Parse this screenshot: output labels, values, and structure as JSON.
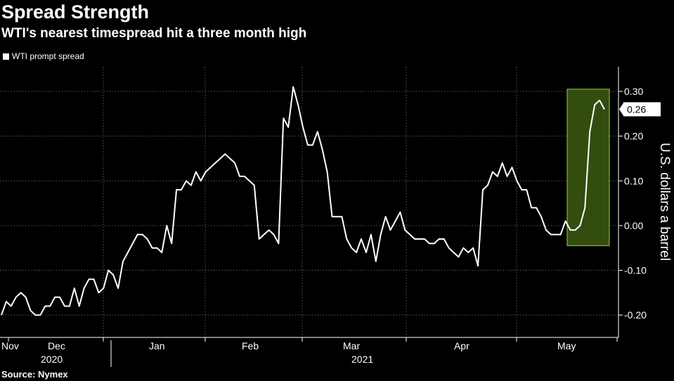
{
  "title": "Spread Strength",
  "subtitle": "WTI's nearest timespread hit a three month high",
  "source": "Source: Nymex",
  "colors": {
    "background": "#000000",
    "line": "#ffffff",
    "highlight_fill": "#3b5a10",
    "highlight_stroke": "#9ccc3c"
  },
  "chart_data": {
    "type": "line",
    "title": "Spread Strength",
    "subtitle": "WTI's nearest timespread hit a three month high",
    "ylabel": "U.S. dollars a barrel",
    "ylim": [
      -0.25,
      0.355
    ],
    "y_ticks": [
      0.3,
      0.2,
      0.1,
      0.0,
      -0.1,
      -0.2
    ],
    "y_tick_labels": [
      "0.30",
      "0.20",
      "0.10",
      "0.00",
      "-0.10",
      "-0.20"
    ],
    "x_month_labels": [
      "Nov",
      "Dec",
      "Jan",
      "Feb",
      "Mar",
      "Apr",
      "May"
    ],
    "x_year_labels": [
      "2020",
      "2021"
    ],
    "grid": true,
    "legend": "top-left",
    "last_value_label": "0.26",
    "highlight": {
      "y_range": [
        -0.045,
        0.305
      ],
      "description": "green highlighted box around recent rise"
    },
    "series": [
      {
        "name": "WTI prompt spread",
        "values": [
          -0.2,
          -0.17,
          -0.18,
          -0.16,
          -0.15,
          -0.16,
          -0.19,
          -0.2,
          -0.2,
          -0.18,
          -0.18,
          -0.16,
          -0.16,
          -0.18,
          -0.18,
          -0.14,
          -0.18,
          -0.14,
          -0.12,
          -0.12,
          -0.15,
          -0.14,
          -0.1,
          -0.11,
          -0.14,
          -0.08,
          -0.06,
          -0.04,
          -0.02,
          -0.02,
          -0.03,
          -0.05,
          -0.05,
          -0.06,
          0.0,
          -0.04,
          0.08,
          0.08,
          0.1,
          0.09,
          0.12,
          0.1,
          0.12,
          0.13,
          0.14,
          0.15,
          0.16,
          0.15,
          0.14,
          0.11,
          0.11,
          0.1,
          0.09,
          -0.03,
          -0.02,
          -0.01,
          -0.02,
          -0.04,
          0.24,
          0.22,
          0.31,
          0.27,
          0.22,
          0.18,
          0.18,
          0.21,
          0.17,
          0.12,
          0.02,
          0.02,
          0.02,
          -0.03,
          -0.05,
          -0.06,
          -0.03,
          -0.06,
          -0.02,
          -0.08,
          -0.02,
          0.02,
          -0.01,
          0.01,
          0.03,
          -0.01,
          -0.02,
          -0.03,
          -0.03,
          -0.03,
          -0.04,
          -0.04,
          -0.03,
          -0.03,
          -0.05,
          -0.06,
          -0.07,
          -0.05,
          -0.06,
          -0.05,
          -0.09,
          0.08,
          0.09,
          0.12,
          0.11,
          0.14,
          0.11,
          0.13,
          0.1,
          0.08,
          0.08,
          0.04,
          0.04,
          0.02,
          -0.01,
          -0.02,
          -0.02,
          -0.02,
          0.01,
          -0.01,
          -0.01,
          0.0,
          0.04,
          0.21,
          0.27,
          0.28,
          0.26
        ]
      }
    ]
  }
}
